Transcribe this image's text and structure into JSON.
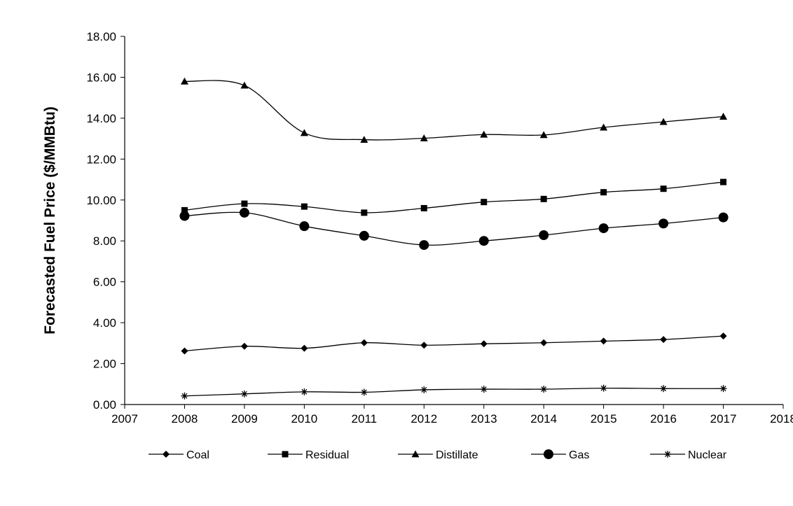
{
  "chart_data": {
    "type": "line",
    "title": "",
    "xlabel": "",
    "ylabel": "Forecasted Fuel Price ($/MMBtu)",
    "xlim": [
      2007,
      2018
    ],
    "ylim": [
      0,
      18
    ],
    "x_ticks": [
      "2007",
      "2008",
      "2009",
      "2010",
      "2011",
      "2012",
      "2013",
      "2014",
      "2015",
      "2016",
      "2017",
      "2018"
    ],
    "y_ticks": [
      "0.00",
      "2.00",
      "4.00",
      "6.00",
      "8.00",
      "10.00",
      "12.00",
      "14.00",
      "16.00",
      "18.00"
    ],
    "x": [
      2008,
      2009,
      2010,
      2011,
      2012,
      2013,
      2014,
      2015,
      2016,
      2017
    ],
    "grid": false,
    "legend_position": "bottom",
    "series": [
      {
        "name": "Coal",
        "marker": "diamond",
        "values": [
          2.62,
          2.85,
          2.75,
          3.02,
          2.9,
          2.97,
          3.02,
          3.1,
          3.18,
          3.35
        ]
      },
      {
        "name": "Residual",
        "marker": "square",
        "values": [
          9.5,
          9.82,
          9.68,
          9.38,
          9.6,
          9.9,
          10.05,
          10.38,
          10.55,
          10.88
        ]
      },
      {
        "name": "Distillate",
        "marker": "triangle",
        "values": [
          15.8,
          15.6,
          13.28,
          12.95,
          13.02,
          13.2,
          13.18,
          13.55,
          13.82,
          14.08
        ]
      },
      {
        "name": "Gas",
        "marker": "circle",
        "values": [
          9.22,
          9.38,
          8.72,
          8.25,
          7.8,
          8.0,
          8.28,
          8.62,
          8.85,
          9.15
        ]
      },
      {
        "name": "Nuclear",
        "marker": "asterisk",
        "values": [
          0.42,
          0.52,
          0.62,
          0.6,
          0.72,
          0.75,
          0.75,
          0.8,
          0.78,
          0.78
        ]
      }
    ]
  }
}
